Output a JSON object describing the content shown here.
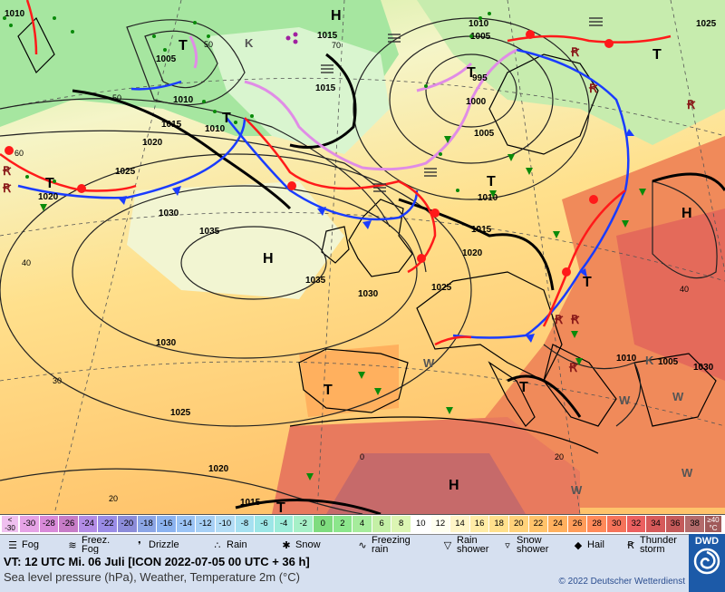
{
  "header": {
    "valid_time": "VT: 12 UTC Mi.  06 Juli [ICON 2022-07-05  00 UTC + 36 h]",
    "subtitle": "Sea level pressure (hPa), Weather, Temperature 2m (°C)",
    "copyright": "© 2022 Deutscher Wetterdienst",
    "logo": "DWD"
  },
  "temperature_scale": {
    "unit": "°C",
    "low_label": "< -30",
    "high_label": "≥40",
    "steps": [
      {
        "label": "-30",
        "color": "#e6a3e6"
      },
      {
        "label": "-28",
        "color": "#d98ad9"
      },
      {
        "label": "-26",
        "color": "#c77cc7"
      },
      {
        "label": "-24",
        "color": "#b38ce6"
      },
      {
        "label": "-22",
        "color": "#9a8ce6"
      },
      {
        "label": "-20",
        "color": "#8c8cd9"
      },
      {
        "label": "-18",
        "color": "#8ca6e6"
      },
      {
        "label": "-16",
        "color": "#8cb3f0"
      },
      {
        "label": "-14",
        "color": "#9cc4f5"
      },
      {
        "label": "-12",
        "color": "#a8d0f5"
      },
      {
        "label": "-10",
        "color": "#b3dcf5"
      },
      {
        "label": "-8",
        "color": "#a6e0f0"
      },
      {
        "label": "-6",
        "color": "#9ce6e6"
      },
      {
        "label": "-4",
        "color": "#9cecd9"
      },
      {
        "label": "-2",
        "color": "#a6f0c7"
      },
      {
        "label": "0",
        "color": "#7fdc7f"
      },
      {
        "label": "2",
        "color": "#8ce68c"
      },
      {
        "label": "4",
        "color": "#a6ec9c"
      },
      {
        "label": "6",
        "color": "#c4f0a6"
      },
      {
        "label": "8",
        "color": "#dcf5b3"
      },
      {
        "label": "10",
        "color": "#ffffff"
      },
      {
        "label": "12",
        "color": "#fffff0"
      },
      {
        "label": "14",
        "color": "#fff5c7"
      },
      {
        "label": "16",
        "color": "#ffeca6"
      },
      {
        "label": "18",
        "color": "#ffe08c"
      },
      {
        "label": "20",
        "color": "#ffd27a"
      },
      {
        "label": "22",
        "color": "#ffc36b"
      },
      {
        "label": "24",
        "color": "#ffb05e"
      },
      {
        "label": "26",
        "color": "#ff9c5a"
      },
      {
        "label": "28",
        "color": "#ff8a5a"
      },
      {
        "label": "30",
        "color": "#f5735a"
      },
      {
        "label": "32",
        "color": "#eb6060"
      },
      {
        "label": "34",
        "color": "#d65a5a"
      },
      {
        "label": "36",
        "color": "#c45a5a"
      },
      {
        "label": "38",
        "color": "#b36b6b"
      }
    ]
  },
  "legend": [
    {
      "icon": "fog-icon",
      "glyph": "☰",
      "label": "Fog"
    },
    {
      "icon": "freezing-fog-icon",
      "glyph": "≋",
      "label": "Freez. Fog"
    },
    {
      "icon": "drizzle-icon",
      "glyph": "❜",
      "label": "Drizzle"
    },
    {
      "icon": "rain-icon",
      "glyph": "∴",
      "label": "Rain"
    },
    {
      "icon": "snow-icon",
      "glyph": "✱",
      "label": "Snow"
    },
    {
      "icon": "freezing-rain-icon",
      "glyph": "∿",
      "label": "Freezing rain"
    },
    {
      "icon": "rain-shower-icon",
      "glyph": "▽",
      "label": "Rain shower"
    },
    {
      "icon": "snow-shower-icon",
      "glyph": "▿",
      "label": "Snow shower"
    },
    {
      "icon": "hail-icon",
      "glyph": "◆",
      "label": "Hail"
    },
    {
      "icon": "thunderstorm-icon",
      "glyph": "Ꞧ",
      "label": "Thunder storm"
    }
  ],
  "map": {
    "pressure_centers": [
      {
        "type": "H"
      },
      {
        "type": "H"
      },
      {
        "type": "H"
      },
      {
        "type": "H"
      },
      {
        "type": "T"
      },
      {
        "type": "T"
      },
      {
        "type": "T"
      },
      {
        "type": "T"
      },
      {
        "type": "T"
      },
      {
        "type": "T"
      },
      {
        "type": "T"
      },
      {
        "type": "T"
      },
      {
        "type": "T"
      },
      {
        "type": "T"
      }
    ],
    "isobar_labels": [
      "1010",
      "1005",
      "1015",
      "1010",
      "1020",
      "1025",
      "1030",
      "1035",
      "1035",
      "1030",
      "1030",
      "1025",
      "1020",
      "1015",
      "1025",
      "1020",
      "1015",
      "1010",
      "1015",
      "1010",
      "1005",
      "1000",
      "995",
      "1005",
      "1010",
      "1015",
      "1005",
      "1010",
      "1020",
      "1025",
      "1030"
    ],
    "graticule_labels": [
      "60",
      "50",
      "40",
      "30",
      "20",
      "0",
      "20",
      "40",
      "70",
      "50"
    ],
    "wind_labels": [
      "W",
      "W",
      "W",
      "W",
      "W",
      "K",
      "K"
    ]
  }
}
